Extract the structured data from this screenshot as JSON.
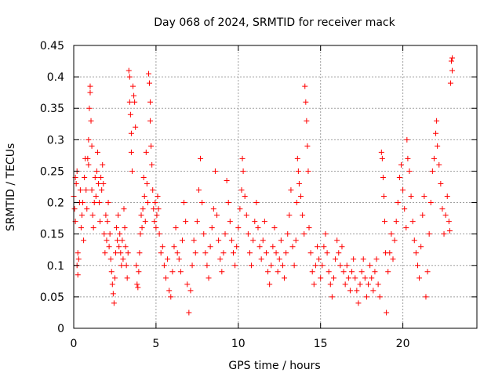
{
  "chart_data": {
    "type": "scatter",
    "title": "Day 068 of 2024, SRMTID for receiver mack",
    "xlabel": "GPS time / hours",
    "ylabel": "SRMTID / TECUs",
    "xlim": [
      0,
      24.5
    ],
    "ylim": [
      0,
      0.45
    ],
    "x_ticks": [
      0,
      5,
      10,
      15,
      20
    ],
    "x_tick_labels": [
      "0",
      "5",
      "10",
      "15",
      "20"
    ],
    "y_ticks": [
      0,
      0.05,
      0.1,
      0.15,
      0.2,
      0.25,
      0.3,
      0.35,
      0.4,
      0.45
    ],
    "y_tick_labels": [
      "0",
      "0.05",
      "0.1",
      "0.15",
      "0.2",
      "0.25",
      "0.3",
      "0.35",
      "0.4",
      "0.45"
    ],
    "grid": true,
    "marker": "+",
    "color": "#ff0000",
    "series": [
      {
        "name": "SRMTID",
        "points": [
          [
            0.0,
            0.21
          ],
          [
            0.05,
            0.19
          ],
          [
            0.1,
            0.24
          ],
          [
            0.1,
            0.17
          ],
          [
            0.15,
            0.23
          ],
          [
            0.2,
            0.25
          ],
          [
            0.2,
            0.1
          ],
          [
            0.25,
            0.12
          ],
          [
            0.25,
            0.085
          ],
          [
            0.3,
            0.11
          ],
          [
            0.35,
            0.2
          ],
          [
            0.4,
            0.22
          ],
          [
            0.45,
            0.16
          ],
          [
            0.5,
            0.18
          ],
          [
            0.55,
            0.2
          ],
          [
            0.6,
            0.14
          ],
          [
            0.65,
            0.24
          ],
          [
            0.7,
            0.27
          ],
          [
            0.75,
            0.22
          ],
          [
            0.8,
            0.19
          ],
          [
            0.85,
            0.27
          ],
          [
            0.9,
            0.3
          ],
          [
            0.9,
            0.26
          ],
          [
            0.95,
            0.35
          ],
          [
            1.0,
            0.385
          ],
          [
            1.0,
            0.375
          ],
          [
            1.05,
            0.33
          ],
          [
            1.1,
            0.29
          ],
          [
            1.1,
            0.22
          ],
          [
            1.15,
            0.18
          ],
          [
            1.2,
            0.16
          ],
          [
            1.25,
            0.2
          ],
          [
            1.3,
            0.24
          ],
          [
            1.35,
            0.21
          ],
          [
            1.4,
            0.25
          ],
          [
            1.45,
            0.28
          ],
          [
            1.5,
            0.23
          ],
          [
            1.55,
            0.2
          ],
          [
            1.6,
            0.17
          ],
          [
            1.65,
            0.24
          ],
          [
            1.7,
            0.22
          ],
          [
            1.75,
            0.26
          ],
          [
            1.8,
            0.23
          ],
          [
            1.85,
            0.15
          ],
          [
            1.9,
            0.12
          ],
          [
            1.95,
            0.18
          ],
          [
            2.0,
            0.14
          ],
          [
            2.05,
            0.17
          ],
          [
            2.1,
            0.2
          ],
          [
            2.15,
            0.13
          ],
          [
            2.2,
            0.15
          ],
          [
            2.25,
            0.11
          ],
          [
            2.3,
            0.09
          ],
          [
            2.35,
            0.07
          ],
          [
            2.4,
            0.055
          ],
          [
            2.45,
            0.04
          ],
          [
            2.5,
            0.08
          ],
          [
            2.55,
            0.12
          ],
          [
            2.6,
            0.16
          ],
          [
            2.65,
            0.14
          ],
          [
            2.7,
            0.18
          ],
          [
            2.75,
            0.13
          ],
          [
            2.8,
            0.15
          ],
          [
            2.85,
            0.12
          ],
          [
            2.9,
            0.1
          ],
          [
            2.95,
            0.14
          ],
          [
            3.0,
            0.11
          ],
          [
            3.05,
            0.19
          ],
          [
            3.1,
            0.16
          ],
          [
            3.15,
            0.13
          ],
          [
            3.2,
            0.1
          ],
          [
            3.25,
            0.08
          ],
          [
            3.3,
            0.12
          ],
          [
            3.35,
            0.41
          ],
          [
            3.4,
            0.4
          ],
          [
            3.4,
            0.36
          ],
          [
            3.45,
            0.34
          ],
          [
            3.5,
            0.31
          ],
          [
            3.5,
            0.28
          ],
          [
            3.55,
            0.25
          ],
          [
            3.6,
            0.385
          ],
          [
            3.65,
            0.37
          ],
          [
            3.7,
            0.36
          ],
          [
            3.75,
            0.32
          ],
          [
            3.8,
            0.1
          ],
          [
            3.85,
            0.07
          ],
          [
            3.9,
            0.065
          ],
          [
            3.95,
            0.09
          ],
          [
            4.0,
            0.12
          ],
          [
            4.05,
            0.15
          ],
          [
            4.1,
            0.18
          ],
          [
            4.15,
            0.16
          ],
          [
            4.2,
            0.19
          ],
          [
            4.25,
            0.24
          ],
          [
            4.3,
            0.21
          ],
          [
            4.35,
            0.17
          ],
          [
            4.4,
            0.28
          ],
          [
            4.45,
            0.23
          ],
          [
            4.5,
            0.2
          ],
          [
            4.55,
            0.405
          ],
          [
            4.6,
            0.39
          ],
          [
            4.65,
            0.36
          ],
          [
            4.65,
            0.33
          ],
          [
            4.7,
            0.29
          ],
          [
            4.75,
            0.26
          ],
          [
            4.8,
            0.22
          ],
          [
            4.85,
            0.19
          ],
          [
            4.9,
            0.17
          ],
          [
            4.95,
            0.2
          ],
          [
            5.0,
            0.16
          ],
          [
            5.05,
            0.18
          ],
          [
            5.1,
            0.21
          ],
          [
            5.15,
            0.19
          ],
          [
            5.2,
            0.15
          ],
          [
            5.3,
            0.12
          ],
          [
            5.4,
            0.13
          ],
          [
            5.5,
            0.1
          ],
          [
            5.6,
            0.08
          ],
          [
            5.7,
            0.11
          ],
          [
            5.8,
            0.06
          ],
          [
            5.9,
            0.05
          ],
          [
            6.0,
            0.09
          ],
          [
            6.1,
            0.13
          ],
          [
            6.2,
            0.16
          ],
          [
            6.3,
            0.12
          ],
          [
            6.4,
            0.11
          ],
          [
            6.5,
            0.09
          ],
          [
            6.6,
            0.14
          ],
          [
            6.7,
            0.2
          ],
          [
            6.8,
            0.17
          ],
          [
            6.9,
            0.07
          ],
          [
            7.0,
            0.025
          ],
          [
            7.1,
            0.06
          ],
          [
            7.2,
            0.1
          ],
          [
            7.3,
            0.14
          ],
          [
            7.4,
            0.12
          ],
          [
            7.5,
            0.17
          ],
          [
            7.6,
            0.22
          ],
          [
            7.7,
            0.27
          ],
          [
            7.8,
            0.2
          ],
          [
            7.9,
            0.15
          ],
          [
            8.0,
            0.12
          ],
          [
            8.1,
            0.1
          ],
          [
            8.2,
            0.08
          ],
          [
            8.3,
            0.13
          ],
          [
            8.4,
            0.16
          ],
          [
            8.5,
            0.19
          ],
          [
            8.6,
            0.25
          ],
          [
            8.7,
            0.18
          ],
          [
            8.8,
            0.14
          ],
          [
            8.9,
            0.11
          ],
          [
            9.0,
            0.09
          ],
          [
            9.1,
            0.12
          ],
          [
            9.2,
            0.15
          ],
          [
            9.3,
            0.235
          ],
          [
            9.4,
            0.2
          ],
          [
            9.5,
            0.17
          ],
          [
            9.6,
            0.14
          ],
          [
            9.7,
            0.12
          ],
          [
            9.8,
            0.1
          ],
          [
            9.9,
            0.13
          ],
          [
            10.0,
            0.16
          ],
          [
            10.1,
            0.19
          ],
          [
            10.2,
            0.22
          ],
          [
            10.25,
            0.27
          ],
          [
            10.3,
            0.25
          ],
          [
            10.4,
            0.21
          ],
          [
            10.5,
            0.18
          ],
          [
            10.6,
            0.15
          ],
          [
            10.7,
            0.12
          ],
          [
            10.8,
            0.1
          ],
          [
            10.9,
            0.14
          ],
          [
            11.0,
            0.17
          ],
          [
            11.1,
            0.2
          ],
          [
            11.2,
            0.16
          ],
          [
            11.3,
            0.13
          ],
          [
            11.4,
            0.11
          ],
          [
            11.5,
            0.14
          ],
          [
            11.6,
            0.17
          ],
          [
            11.7,
            0.12
          ],
          [
            11.8,
            0.09
          ],
          [
            11.9,
            0.07
          ],
          [
            12.0,
            0.1
          ],
          [
            12.1,
            0.13
          ],
          [
            12.2,
            0.16
          ],
          [
            12.3,
            0.12
          ],
          [
            12.4,
            0.09
          ],
          [
            12.5,
            0.11
          ],
          [
            12.6,
            0.14
          ],
          [
            12.7,
            0.1
          ],
          [
            12.8,
            0.08
          ],
          [
            12.9,
            0.12
          ],
          [
            13.0,
            0.15
          ],
          [
            13.1,
            0.18
          ],
          [
            13.2,
            0.22
          ],
          [
            13.3,
            0.13
          ],
          [
            13.4,
            0.1
          ],
          [
            13.5,
            0.14
          ],
          [
            13.55,
            0.2
          ],
          [
            13.6,
            0.27
          ],
          [
            13.65,
            0.25
          ],
          [
            13.7,
            0.23
          ],
          [
            13.8,
            0.21
          ],
          [
            13.9,
            0.18
          ],
          [
            14.0,
            0.15
          ],
          [
            14.05,
            0.385
          ],
          [
            14.1,
            0.36
          ],
          [
            14.15,
            0.33
          ],
          [
            14.2,
            0.29
          ],
          [
            14.25,
            0.25
          ],
          [
            14.3,
            0.16
          ],
          [
            14.4,
            0.12
          ],
          [
            14.5,
            0.09
          ],
          [
            14.6,
            0.07
          ],
          [
            14.7,
            0.1
          ],
          [
            14.8,
            0.13
          ],
          [
            14.9,
            0.11
          ],
          [
            15.0,
            0.08
          ],
          [
            15.1,
            0.1
          ],
          [
            15.2,
            0.13
          ],
          [
            15.3,
            0.15
          ],
          [
            15.4,
            0.12
          ],
          [
            15.5,
            0.09
          ],
          [
            15.6,
            0.07
          ],
          [
            15.7,
            0.05
          ],
          [
            15.8,
            0.08
          ],
          [
            15.9,
            0.11
          ],
          [
            16.0,
            0.14
          ],
          [
            16.1,
            0.12
          ],
          [
            16.2,
            0.1
          ],
          [
            16.3,
            0.13
          ],
          [
            16.4,
            0.09
          ],
          [
            16.5,
            0.07
          ],
          [
            16.6,
            0.1
          ],
          [
            16.7,
            0.08
          ],
          [
            16.8,
            0.06
          ],
          [
            16.9,
            0.09
          ],
          [
            17.0,
            0.11
          ],
          [
            17.1,
            0.08
          ],
          [
            17.2,
            0.06
          ],
          [
            17.3,
            0.04
          ],
          [
            17.4,
            0.07
          ],
          [
            17.5,
            0.09
          ],
          [
            17.6,
            0.11
          ],
          [
            17.7,
            0.08
          ],
          [
            17.8,
            0.05
          ],
          [
            17.9,
            0.07
          ],
          [
            18.0,
            0.1
          ],
          [
            18.1,
            0.08
          ],
          [
            18.2,
            0.06
          ],
          [
            18.3,
            0.09
          ],
          [
            18.4,
            0.11
          ],
          [
            18.5,
            0.07
          ],
          [
            18.6,
            0.05
          ],
          [
            18.7,
            0.28
          ],
          [
            18.75,
            0.27
          ],
          [
            18.8,
            0.24
          ],
          [
            18.85,
            0.21
          ],
          [
            18.9,
            0.17
          ],
          [
            18.95,
            0.12
          ],
          [
            19.0,
            0.025
          ],
          [
            19.1,
            0.09
          ],
          [
            19.2,
            0.12
          ],
          [
            19.3,
            0.15
          ],
          [
            19.4,
            0.11
          ],
          [
            19.5,
            0.14
          ],
          [
            19.6,
            0.17
          ],
          [
            19.7,
            0.2
          ],
          [
            19.8,
            0.24
          ],
          [
            19.9,
            0.26
          ],
          [
            20.0,
            0.22
          ],
          [
            20.1,
            0.19
          ],
          [
            20.2,
            0.16
          ],
          [
            20.25,
            0.3
          ],
          [
            20.3,
            0.27
          ],
          [
            20.4,
            0.25
          ],
          [
            20.5,
            0.21
          ],
          [
            20.6,
            0.17
          ],
          [
            20.7,
            0.14
          ],
          [
            20.8,
            0.12
          ],
          [
            20.9,
            0.1
          ],
          [
            21.0,
            0.08
          ],
          [
            21.1,
            0.13
          ],
          [
            21.2,
            0.18
          ],
          [
            21.3,
            0.21
          ],
          [
            21.4,
            0.05
          ],
          [
            21.5,
            0.09
          ],
          [
            21.6,
            0.15
          ],
          [
            21.7,
            0.2
          ],
          [
            21.8,
            0.25
          ],
          [
            21.9,
            0.27
          ],
          [
            22.0,
            0.31
          ],
          [
            22.05,
            0.33
          ],
          [
            22.1,
            0.29
          ],
          [
            22.2,
            0.26
          ],
          [
            22.3,
            0.23
          ],
          [
            22.4,
            0.19
          ],
          [
            22.5,
            0.15
          ],
          [
            22.6,
            0.18
          ],
          [
            22.7,
            0.21
          ],
          [
            22.8,
            0.17
          ],
          [
            22.85,
            0.155
          ],
          [
            22.9,
            0.39
          ],
          [
            22.95,
            0.425
          ],
          [
            23.0,
            0.41
          ],
          [
            23.0,
            0.43
          ]
        ]
      }
    ]
  }
}
